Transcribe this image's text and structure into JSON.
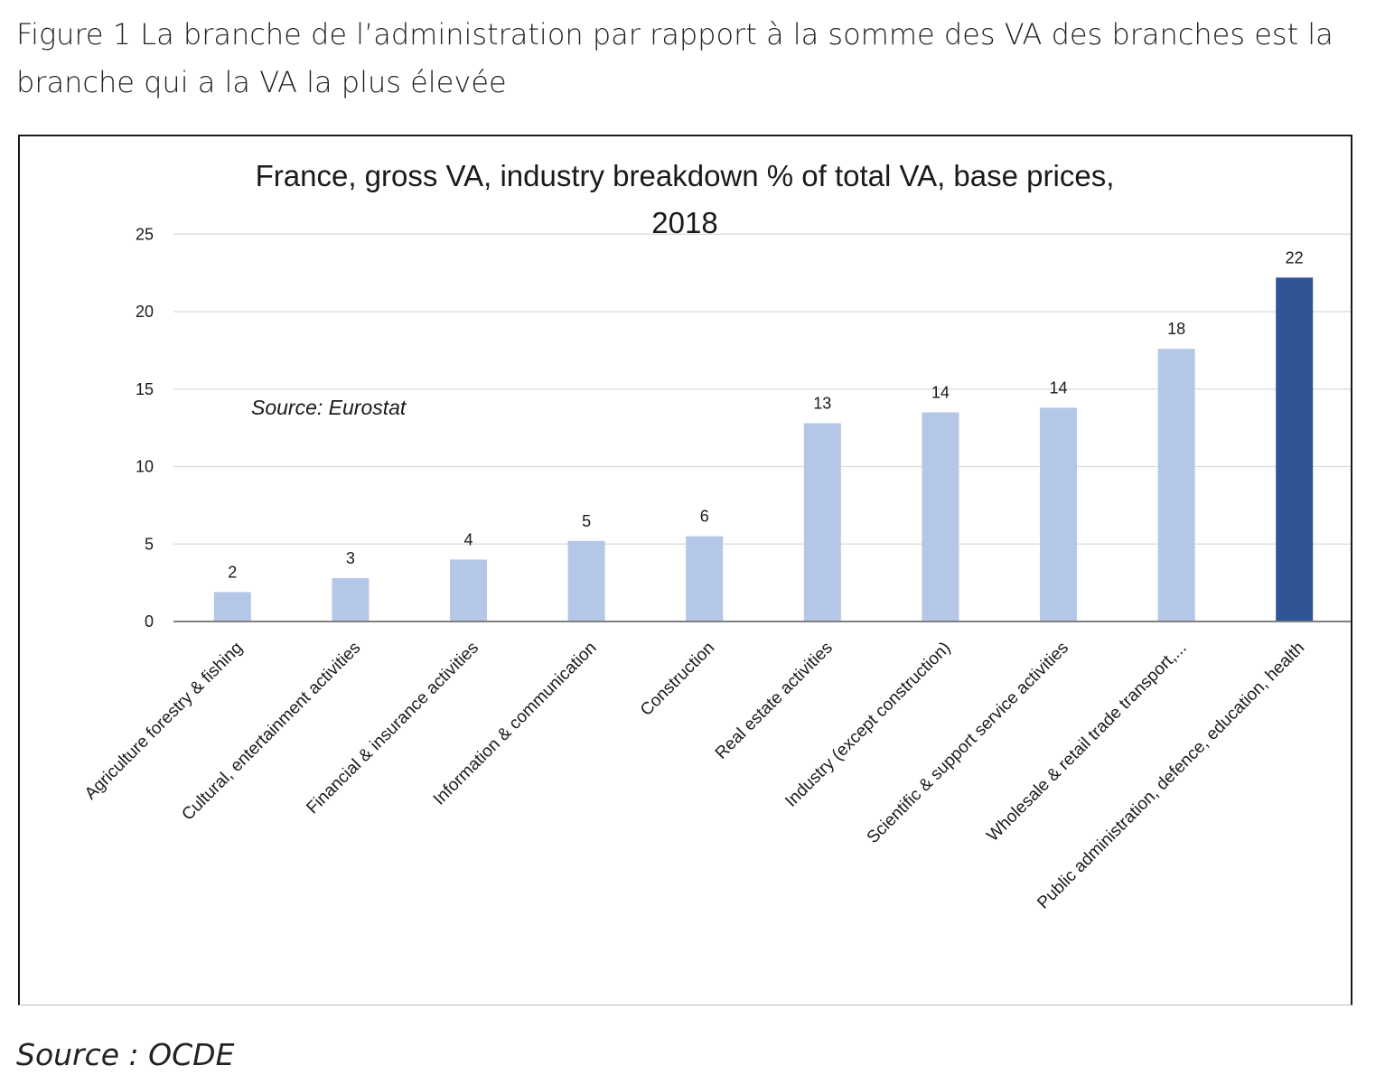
{
  "caption": "Figure 1 La branche de l’administration par rapport à la somme des VA des branches est la branche qui a la VA la plus élevée",
  "source_note": "Source : OCDE",
  "chart_data": {
    "type": "bar",
    "title_line1": "France, gross VA, industry breakdown % of total VA, base prices,",
    "title_line2": "2018",
    "annotation": "Source: Eurostat",
    "xlabel": "",
    "ylabel": "",
    "ylim": [
      0,
      25
    ],
    "yticks": [
      0,
      5,
      10,
      15,
      20,
      25
    ],
    "grid": true,
    "categories": [
      "Agriculture forestry & fishing",
      "Cultural, entertainment activities",
      "Financial & insurance activities",
      "Information & communication",
      "Construction",
      "Real estate activities",
      "Industry (except construction)",
      "Scientific & support service activities",
      "Wholesale & retail trade transport,...",
      "Public administration, defence, education, health"
    ],
    "values": [
      1.9,
      2.8,
      4.0,
      5.2,
      5.5,
      12.8,
      13.5,
      13.8,
      17.6,
      22.2
    ],
    "data_labels": [
      "2",
      "3",
      "4",
      "5",
      "6",
      "13",
      "14",
      "14",
      "18",
      "22"
    ],
    "colors": {
      "bar": "#b4c7e7",
      "highlight": "#2f5597",
      "grid": "#d9d9d9",
      "axis": "#7f7f7f",
      "text": "#1a1a1a"
    },
    "highlight_index": 9
  }
}
